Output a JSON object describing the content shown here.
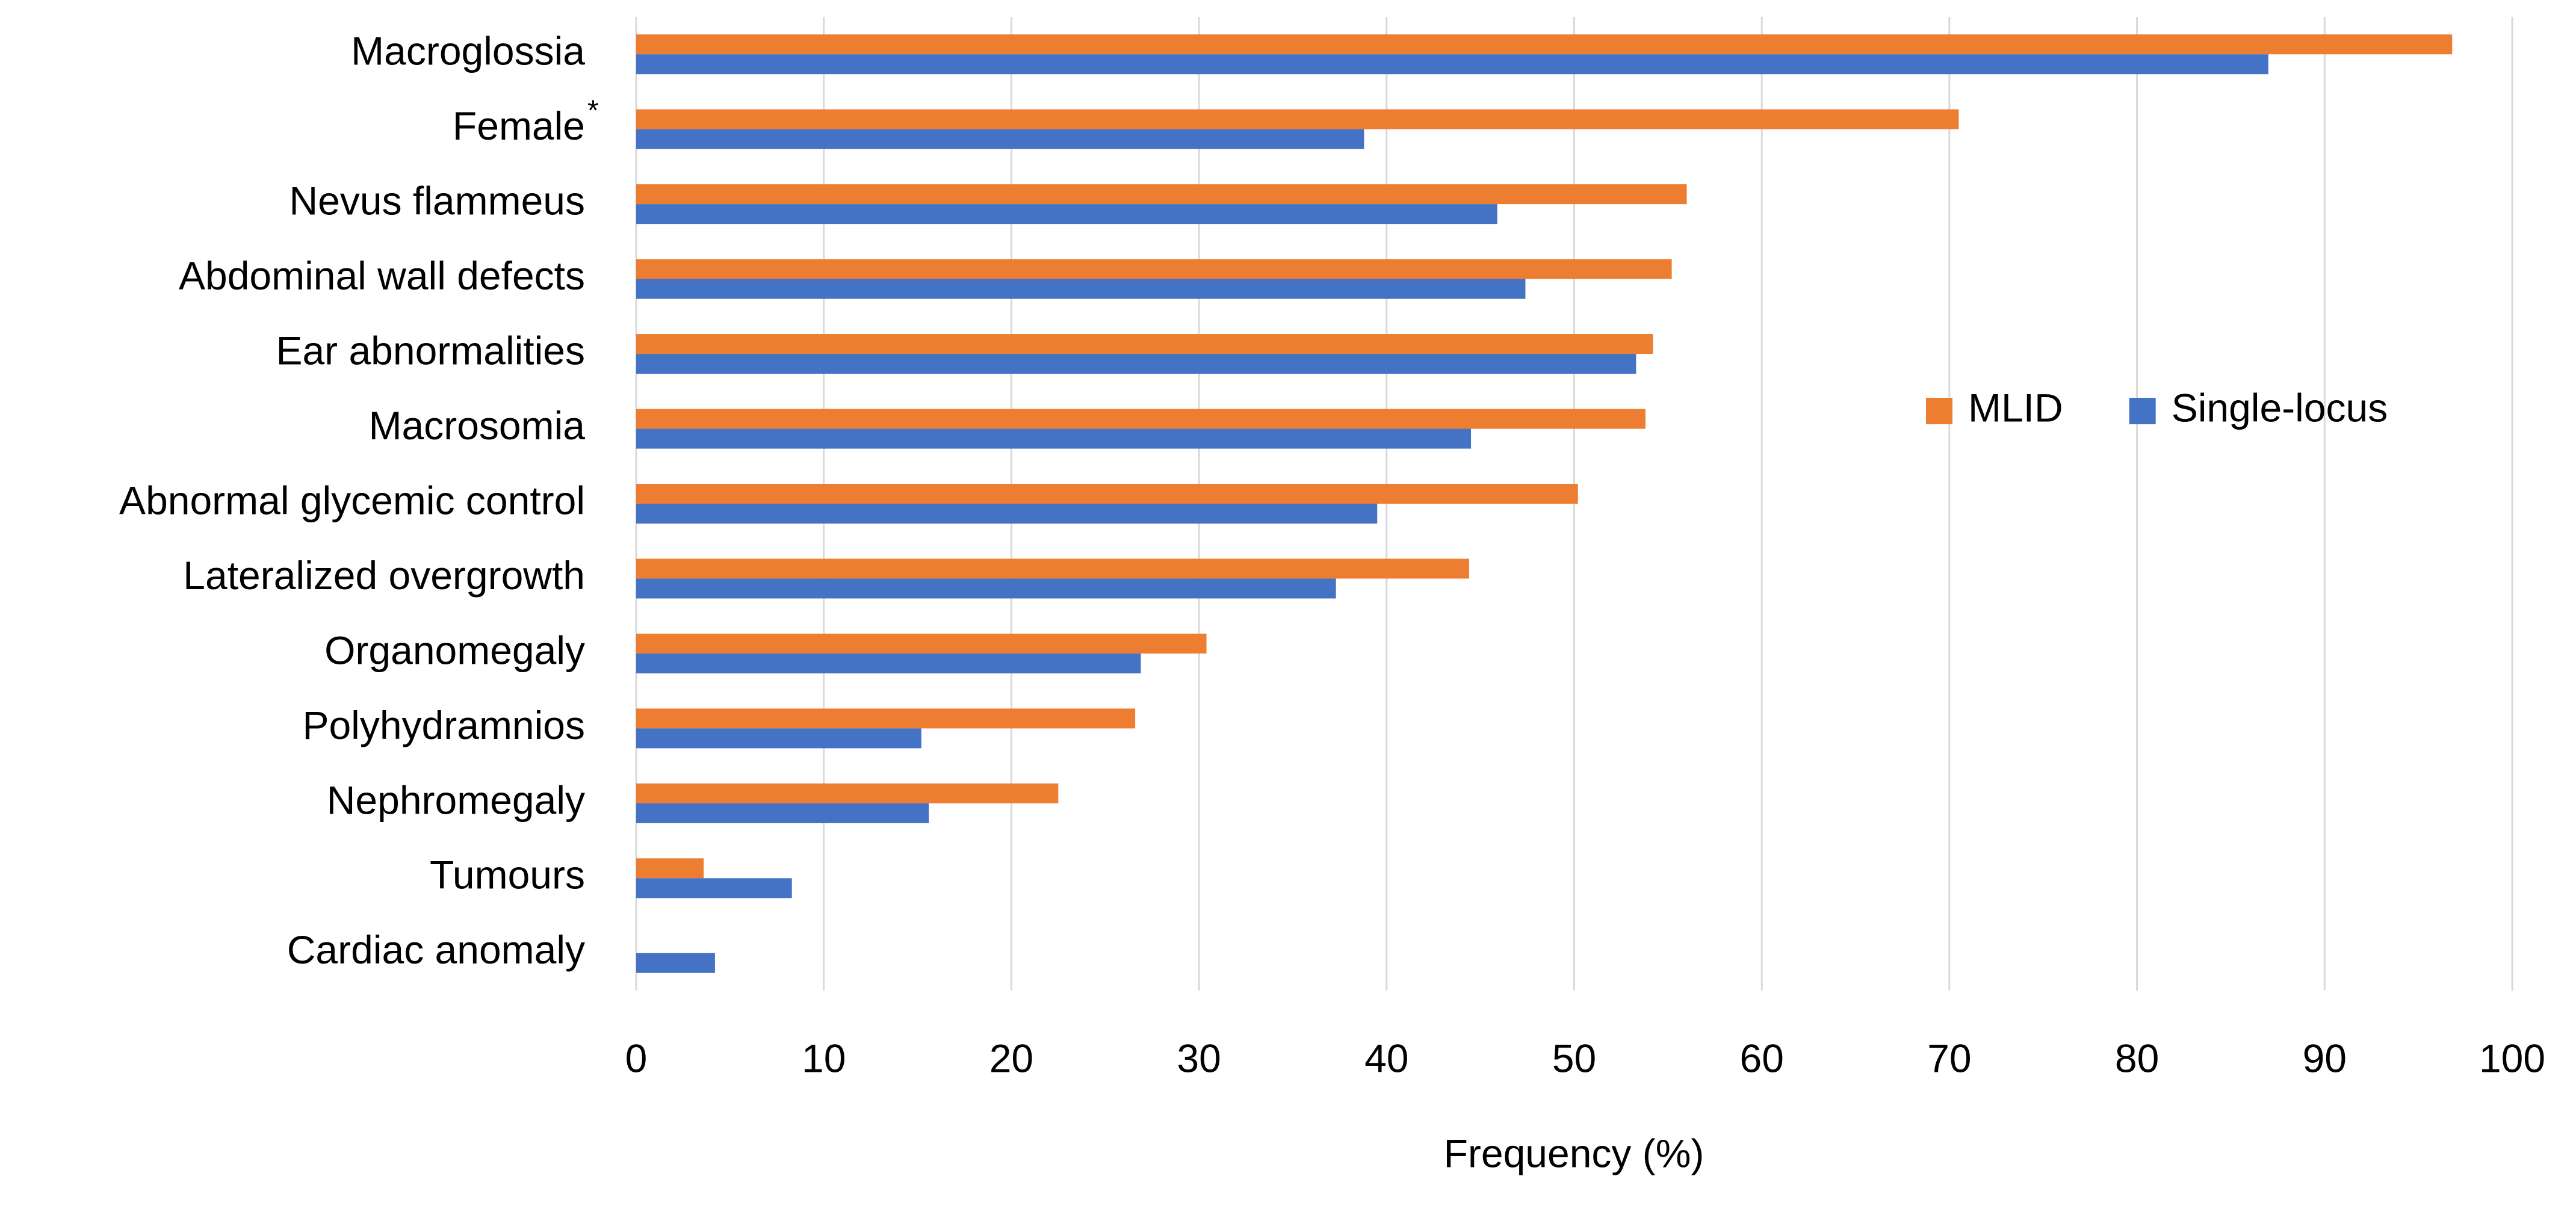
{
  "chart_data": {
    "type": "bar",
    "orientation": "horizontal",
    "x_label": "Frequency (%)",
    "categories": [
      "Macroglossia",
      "Female",
      "Nevus flammeus",
      "Abdominal wall defects",
      "Ear abnormalities",
      "Macrosomia",
      "Abnormal glycemic control",
      "Lateralized overgrowth",
      "Organomegaly",
      "Polyhydramnios",
      "Nephromegaly",
      "Tumours",
      "Cardiac anomaly"
    ],
    "category_marks": [
      null,
      "*",
      null,
      null,
      null,
      null,
      null,
      null,
      null,
      null,
      null,
      null,
      null
    ],
    "series": [
      {
        "name": "MLID",
        "color": "#ed7d31",
        "values": [
          96.8,
          70.5,
          56,
          55.2,
          54.2,
          53.8,
          50.2,
          44.4,
          30.4,
          26.6,
          22.5,
          3.6,
          0
        ]
      },
      {
        "name": "Single-locus",
        "color": "#4472c4",
        "values": [
          87,
          38.8,
          45.9,
          47.4,
          53.3,
          44.5,
          39.5,
          37.3,
          26.9,
          15.2,
          15.6,
          8.3,
          4.2
        ]
      }
    ],
    "xlim": [
      0,
      100
    ],
    "xticks": [
      0,
      10,
      20,
      30,
      40,
      50,
      60,
      70,
      80,
      90,
      100
    ],
    "grid": true,
    "legend": "right"
  }
}
